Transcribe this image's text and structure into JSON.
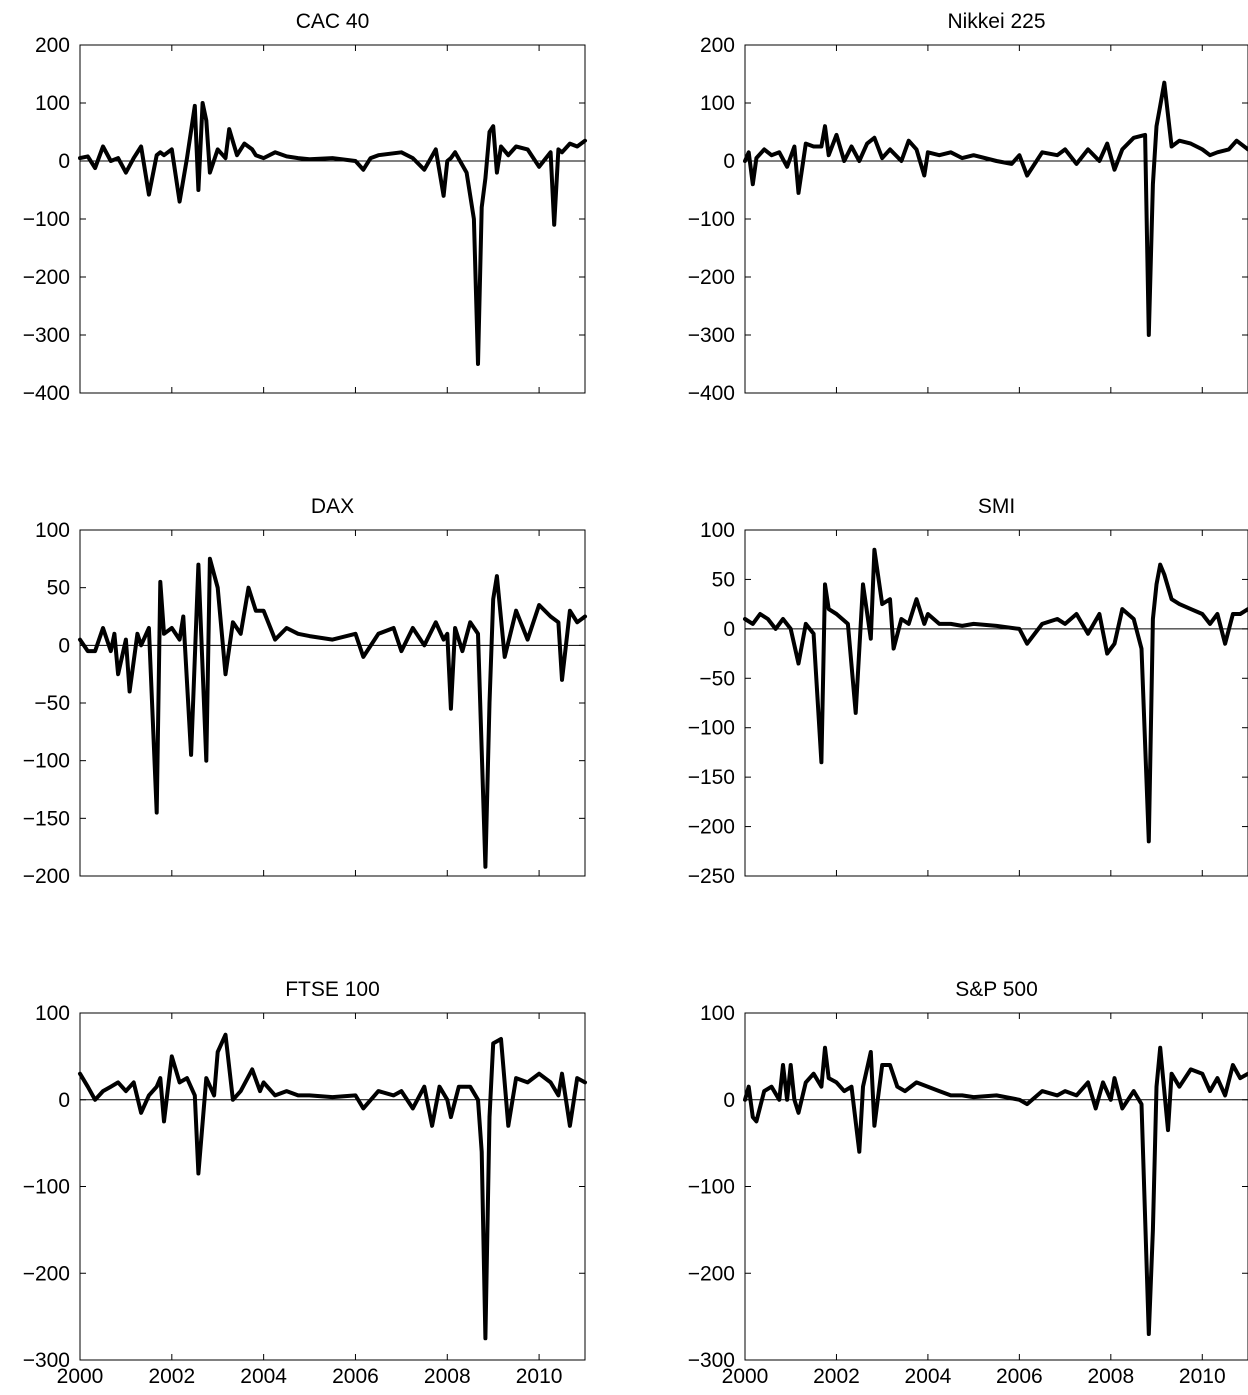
{
  "chart_data": [
    {
      "type": "line",
      "title": "CAC 40",
      "xlim": [
        2000,
        2011
      ],
      "ylim": [
        -400,
        200
      ],
      "yticks": [
        200,
        100,
        0,
        -100,
        -200,
        -300,
        -400
      ],
      "ytick_labels": [
        "200",
        "100",
        "0",
        "−100",
        "−200",
        "−300",
        "−400"
      ],
      "xticks": [
        2000,
        2002,
        2004,
        2006,
        2008,
        2010
      ],
      "xtick_labels": [],
      "zero_line": true,
      "series": [
        {
          "x": [
            2000.0,
            2000.17,
            2000.33,
            2000.5,
            2000.67,
            2000.83,
            2001.0,
            2001.17,
            2001.33,
            2001.5,
            2001.67,
            2001.75,
            2001.83,
            2002.0,
            2002.17,
            2002.33,
            2002.5,
            2002.58,
            2002.67,
            2002.75,
            2002.83,
            2003.0,
            2003.17,
            2003.25,
            2003.42,
            2003.58,
            2003.75,
            2003.83,
            2004.0,
            2004.25,
            2004.5,
            2004.75,
            2005.0,
            2005.5,
            2006.0,
            2006.17,
            2006.33,
            2006.5,
            2007.0,
            2007.25,
            2007.5,
            2007.75,
            2007.92,
            2008.0,
            2008.08,
            2008.17,
            2008.42,
            2008.58,
            2008.67,
            2008.75,
            2008.83,
            2008.92,
            2009.0,
            2009.08,
            2009.17,
            2009.33,
            2009.5,
            2009.75,
            2010.0,
            2010.25,
            2010.33,
            2010.42,
            2010.5,
            2010.67,
            2010.83,
            2011.0
          ],
          "y": [
            5,
            8,
            -12,
            25,
            0,
            5,
            -20,
            5,
            25,
            -58,
            10,
            15,
            10,
            20,
            -70,
            5,
            95,
            -50,
            100,
            70,
            -20,
            20,
            5,
            55,
            10,
            30,
            20,
            10,
            5,
            15,
            8,
            5,
            3,
            5,
            0,
            -15,
            5,
            10,
            15,
            5,
            -15,
            20,
            -60,
            0,
            5,
            15,
            -20,
            -100,
            -350,
            -80,
            -30,
            50,
            60,
            -20,
            25,
            10,
            25,
            20,
            -10,
            15,
            -110,
            20,
            15,
            30,
            25,
            35
          ]
        }
      ]
    },
    {
      "type": "line",
      "title": "Nikkei 225",
      "xlim": [
        2000,
        2011
      ],
      "ylim": [
        -400,
        200
      ],
      "yticks": [
        200,
        100,
        0,
        -100,
        -200,
        -300,
        -400
      ],
      "ytick_labels": [
        "200",
        "100",
        "0",
        "−100",
        "−200",
        "−300",
        "−400"
      ],
      "xticks": [
        2000,
        2002,
        2004,
        2006,
        2008,
        2010
      ],
      "xtick_labels": [],
      "zero_line": true,
      "series": [
        {
          "x": [
            2000.0,
            2000.08,
            2000.17,
            2000.25,
            2000.42,
            2000.58,
            2000.75,
            2000.92,
            2001.08,
            2001.17,
            2001.33,
            2001.5,
            2001.67,
            2001.75,
            2001.83,
            2002.0,
            2002.17,
            2002.33,
            2002.5,
            2002.67,
            2002.83,
            2003.0,
            2003.17,
            2003.42,
            2003.58,
            2003.75,
            2003.92,
            2004.0,
            2004.25,
            2004.5,
            2004.75,
            2005.0,
            2005.5,
            2005.83,
            2006.0,
            2006.17,
            2006.5,
            2006.83,
            2007.0,
            2007.25,
            2007.5,
            2007.75,
            2007.92,
            2008.08,
            2008.25,
            2008.5,
            2008.75,
            2008.83,
            2008.92,
            2009.0,
            2009.08,
            2009.17,
            2009.33,
            2009.5,
            2009.75,
            2010.0,
            2010.17,
            2010.33,
            2010.58,
            2010.75,
            2011.0
          ],
          "y": [
            0,
            15,
            -40,
            5,
            20,
            10,
            15,
            -10,
            25,
            -55,
            30,
            25,
            25,
            60,
            10,
            45,
            0,
            25,
            0,
            30,
            40,
            5,
            20,
            0,
            35,
            20,
            -25,
            15,
            10,
            15,
            5,
            10,
            0,
            -5,
            10,
            -25,
            15,
            10,
            20,
            -5,
            20,
            0,
            30,
            -15,
            20,
            40,
            45,
            -300,
            -40,
            60,
            95,
            135,
            25,
            35,
            30,
            20,
            10,
            15,
            20,
            35,
            20
          ]
        }
      ]
    },
    {
      "type": "line",
      "title": "DAX",
      "xlim": [
        2000,
        2011
      ],
      "ylim": [
        -200,
        100
      ],
      "yticks": [
        100,
        50,
        0,
        -50,
        -100,
        -150,
        -200
      ],
      "ytick_labels": [
        "100",
        "50",
        "0",
        "−50",
        "−100",
        "−150",
        "−200"
      ],
      "xticks": [
        2000,
        2002,
        2004,
        2006,
        2008,
        2010
      ],
      "xtick_labels": [],
      "zero_line": true,
      "series": [
        {
          "x": [
            2000.0,
            2000.17,
            2000.33,
            2000.5,
            2000.67,
            2000.75,
            2000.83,
            2001.0,
            2001.08,
            2001.25,
            2001.33,
            2001.5,
            2001.67,
            2001.75,
            2001.83,
            2002.0,
            2002.17,
            2002.25,
            2002.42,
            2002.58,
            2002.75,
            2002.83,
            2003.0,
            2003.17,
            2003.33,
            2003.5,
            2003.67,
            2003.83,
            2004.0,
            2004.25,
            2004.5,
            2004.75,
            2005.0,
            2005.5,
            2006.0,
            2006.17,
            2006.5,
            2006.83,
            2007.0,
            2007.25,
            2007.5,
            2007.75,
            2007.92,
            2008.0,
            2008.08,
            2008.17,
            2008.33,
            2008.5,
            2008.67,
            2008.83,
            2008.92,
            2009.0,
            2009.08,
            2009.25,
            2009.5,
            2009.75,
            2010.0,
            2010.25,
            2010.42,
            2010.5,
            2010.67,
            2010.83,
            2011.0
          ],
          "y": [
            5,
            -5,
            -5,
            15,
            -5,
            10,
            -25,
            5,
            -40,
            10,
            0,
            15,
            -145,
            55,
            10,
            15,
            5,
            25,
            -95,
            70,
            -100,
            75,
            50,
            -25,
            20,
            10,
            50,
            30,
            30,
            5,
            15,
            10,
            8,
            5,
            10,
            -10,
            10,
            15,
            -5,
            15,
            0,
            20,
            5,
            10,
            -55,
            15,
            -5,
            20,
            10,
            -192,
            -50,
            40,
            60,
            -10,
            30,
            5,
            35,
            25,
            20,
            -30,
            30,
            20,
            25
          ]
        }
      ]
    },
    {
      "type": "line",
      "title": "SMI",
      "xlim": [
        2000,
        2011
      ],
      "ylim": [
        -250,
        100
      ],
      "yticks": [
        100,
        50,
        0,
        -50,
        -100,
        -150,
        -200,
        -250
      ],
      "ytick_labels": [
        "100",
        "50",
        "0",
        "−50",
        "−100",
        "−150",
        "−200",
        "−250"
      ],
      "xticks": [
        2000,
        2002,
        2004,
        2006,
        2008,
        2010
      ],
      "xtick_labels": [],
      "zero_line": true,
      "series": [
        {
          "x": [
            2000.0,
            2000.17,
            2000.33,
            2000.5,
            2000.67,
            2000.83,
            2001.0,
            2001.17,
            2001.33,
            2001.5,
            2001.67,
            2001.75,
            2001.83,
            2002.0,
            2002.25,
            2002.42,
            2002.58,
            2002.75,
            2002.83,
            2003.0,
            2003.17,
            2003.25,
            2003.42,
            2003.58,
            2003.75,
            2003.92,
            2004.0,
            2004.25,
            2004.5,
            2004.75,
            2005.0,
            2005.5,
            2006.0,
            2006.17,
            2006.5,
            2006.83,
            2007.0,
            2007.25,
            2007.5,
            2007.75,
            2007.92,
            2008.08,
            2008.25,
            2008.5,
            2008.67,
            2008.83,
            2008.92,
            2009.0,
            2009.08,
            2009.17,
            2009.33,
            2009.5,
            2009.75,
            2010.0,
            2010.17,
            2010.33,
            2010.5,
            2010.67,
            2010.83,
            2011.0
          ],
          "y": [
            10,
            5,
            15,
            10,
            0,
            10,
            0,
            -35,
            5,
            -5,
            -135,
            45,
            20,
            15,
            5,
            -85,
            45,
            -10,
            80,
            25,
            30,
            -20,
            10,
            5,
            30,
            5,
            15,
            5,
            5,
            3,
            5,
            3,
            0,
            -15,
            5,
            10,
            5,
            15,
            -5,
            15,
            -25,
            -15,
            20,
            10,
            -20,
            -215,
            10,
            45,
            65,
            55,
            30,
            25,
            20,
            15,
            5,
            15,
            -15,
            15,
            15,
            20
          ]
        }
      ]
    },
    {
      "type": "line",
      "title": "FTSE 100",
      "xlim": [
        2000,
        2011
      ],
      "ylim": [
        -300,
        100
      ],
      "yticks": [
        100,
        0,
        -100,
        -200,
        -300
      ],
      "ytick_labels": [
        "100",
        "0",
        "−100",
        "−200",
        "−300"
      ],
      "xticks": [
        2000,
        2002,
        2004,
        2006,
        2008,
        2010
      ],
      "xtick_labels": [
        "2000",
        "2002",
        "2004",
        "2006",
        "2008",
        "2010"
      ],
      "zero_line": true,
      "series": [
        {
          "x": [
            2000.0,
            2000.17,
            2000.33,
            2000.5,
            2000.67,
            2000.83,
            2001.0,
            2001.17,
            2001.33,
            2001.5,
            2001.67,
            2001.75,
            2001.83,
            2002.0,
            2002.17,
            2002.33,
            2002.5,
            2002.58,
            2002.75,
            2002.92,
            2003.0,
            2003.17,
            2003.33,
            2003.5,
            2003.75,
            2003.92,
            2004.0,
            2004.25,
            2004.5,
            2004.75,
            2005.0,
            2005.5,
            2006.0,
            2006.17,
            2006.5,
            2006.83,
            2007.0,
            2007.25,
            2007.5,
            2007.67,
            2007.83,
            2008.0,
            2008.08,
            2008.25,
            2008.5,
            2008.67,
            2008.75,
            2008.83,
            2008.92,
            2009.0,
            2009.17,
            2009.33,
            2009.5,
            2009.75,
            2010.0,
            2010.25,
            2010.42,
            2010.5,
            2010.67,
            2010.83,
            2011.0
          ],
          "y": [
            30,
            15,
            0,
            10,
            15,
            20,
            10,
            20,
            -15,
            5,
            15,
            25,
            -25,
            50,
            20,
            25,
            5,
            -85,
            25,
            5,
            55,
            75,
            0,
            10,
            35,
            10,
            20,
            5,
            10,
            5,
            5,
            3,
            5,
            -10,
            10,
            5,
            10,
            -10,
            15,
            -30,
            15,
            0,
            -20,
            15,
            15,
            0,
            -60,
            -275,
            -20,
            65,
            70,
            -30,
            25,
            20,
            30,
            20,
            5,
            30,
            -30,
            25,
            20
          ]
        }
      ]
    },
    {
      "type": "line",
      "title": "S&P 500",
      "xlim": [
        2000,
        2011
      ],
      "ylim": [
        -300,
        100
      ],
      "yticks": [
        100,
        0,
        -100,
        -200,
        -300
      ],
      "ytick_labels": [
        "100",
        "0",
        "−100",
        "−200",
        "−300"
      ],
      "xticks": [
        2000,
        2002,
        2004,
        2006,
        2008,
        2010
      ],
      "xtick_labels": [
        "2000",
        "2002",
        "2004",
        "2006",
        "2008",
        "2010"
      ],
      "zero_line": true,
      "series": [
        {
          "x": [
            2000.0,
            2000.08,
            2000.17,
            2000.25,
            2000.42,
            2000.58,
            2000.75,
            2000.83,
            2000.92,
            2001.0,
            2001.08,
            2001.17,
            2001.33,
            2001.5,
            2001.67,
            2001.75,
            2001.83,
            2002.0,
            2002.17,
            2002.33,
            2002.5,
            2002.58,
            2002.75,
            2002.83,
            2003.0,
            2003.17,
            2003.33,
            2003.5,
            2003.75,
            2004.0,
            2004.25,
            2004.5,
            2004.75,
            2005.0,
            2005.5,
            2006.0,
            2006.17,
            2006.5,
            2006.83,
            2007.0,
            2007.25,
            2007.5,
            2007.67,
            2007.83,
            2008.0,
            2008.08,
            2008.25,
            2008.5,
            2008.67,
            2008.83,
            2008.92,
            2009.0,
            2009.08,
            2009.25,
            2009.33,
            2009.5,
            2009.75,
            2010.0,
            2010.17,
            2010.33,
            2010.5,
            2010.67,
            2010.83,
            2011.0
          ],
          "y": [
            0,
            15,
            -20,
            -25,
            10,
            15,
            0,
            40,
            0,
            40,
            0,
            -15,
            20,
            30,
            15,
            60,
            25,
            20,
            10,
            15,
            -60,
            15,
            55,
            -30,
            40,
            40,
            15,
            10,
            20,
            15,
            10,
            5,
            5,
            3,
            5,
            0,
            -5,
            10,
            5,
            10,
            5,
            20,
            -10,
            20,
            0,
            25,
            -10,
            10,
            -5,
            -270,
            -150,
            15,
            60,
            -35,
            30,
            15,
            35,
            30,
            10,
            25,
            5,
            40,
            25,
            30
          ]
        }
      ]
    }
  ]
}
